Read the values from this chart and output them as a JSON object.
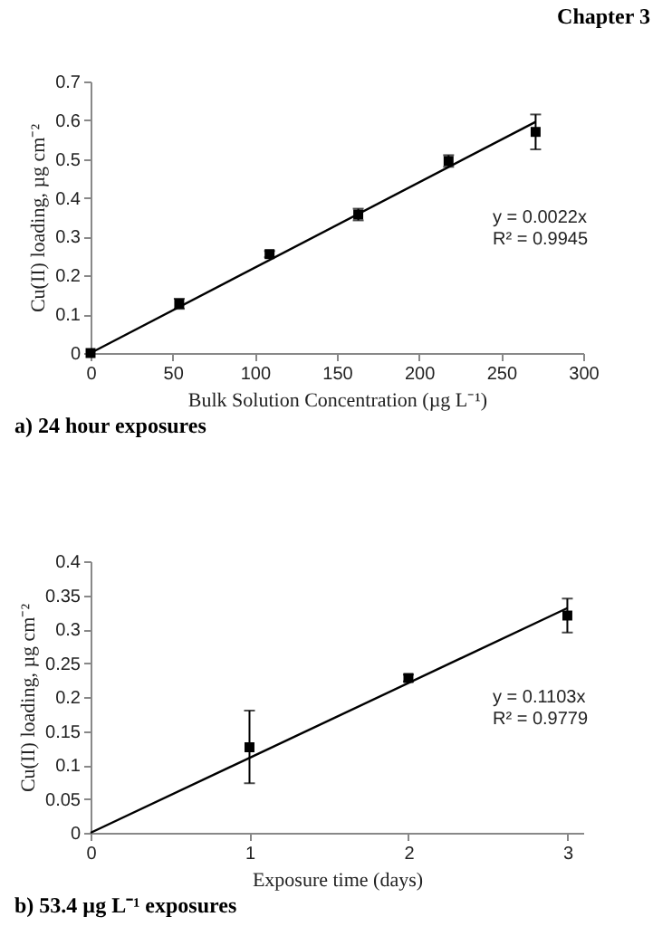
{
  "chart_data": [
    {
      "type": "scatter",
      "title": "a) 24 hour exposures",
      "xlabel": "Bulk Solution Concentration (µg L⁻¹)",
      "ylabel": "Cu(II) loading, µg cm⁻²",
      "series": [
        {
          "type": "scatter",
          "marker": "square",
          "color": "#000000",
          "x": [
            0,
            54,
            109,
            163,
            218,
            271
          ],
          "values": [
            0,
            0.127,
            0.255,
            0.357,
            0.495,
            0.57
          ],
          "errors": [
            null,
            0.013,
            0.008,
            0.015,
            0.015,
            0.045
          ]
        },
        {
          "type": "line",
          "color": "#000000",
          "x": [
            0,
            271
          ],
          "values": [
            0,
            0.596
          ]
        }
      ],
      "annotations": [
        "Chapter 3",
        "y = 0.0022x",
        "R² = 0.9945"
      ],
      "xlim": [
        0,
        300
      ],
      "xticks": [
        0,
        50,
        100,
        150,
        200,
        250,
        300
      ],
      "ylim": [
        0,
        0.7
      ],
      "yticks": [
        0,
        0.1,
        0.2,
        0.3,
        0.4,
        0.5,
        0.6,
        0.7
      ],
      "grid": false
    },
    {
      "type": "scatter",
      "title": "b) 53.4 µg L⁻¹ exposures",
      "xlabel": "Exposure time (days)",
      "ylabel": "Cu(II) loading, µg cm⁻²",
      "series": [
        {
          "type": "scatter",
          "marker": "square",
          "color": "#000000",
          "x": [
            1,
            2,
            3
          ],
          "values": [
            0.126,
            0.228,
            0.32
          ],
          "errors": [
            [
              0.073,
              0.18
            ],
            0.005,
            [
              0.295,
              0.345
            ]
          ]
        },
        {
          "type": "line",
          "color": "#000000",
          "x": [
            0,
            3
          ],
          "values": [
            0,
            0.331
          ]
        }
      ],
      "annotations": [
        "y = 0.1103x",
        "R² = 0.9779"
      ],
      "xlim": [
        0,
        3.1
      ],
      "xticks": [
        0,
        1,
        2,
        3
      ],
      "ylim": [
        0,
        0.4
      ],
      "yticks": [
        0,
        0.05,
        0.1,
        0.15,
        0.2,
        0.25,
        0.3,
        0.35,
        0.4
      ],
      "grid": false
    }
  ]
}
